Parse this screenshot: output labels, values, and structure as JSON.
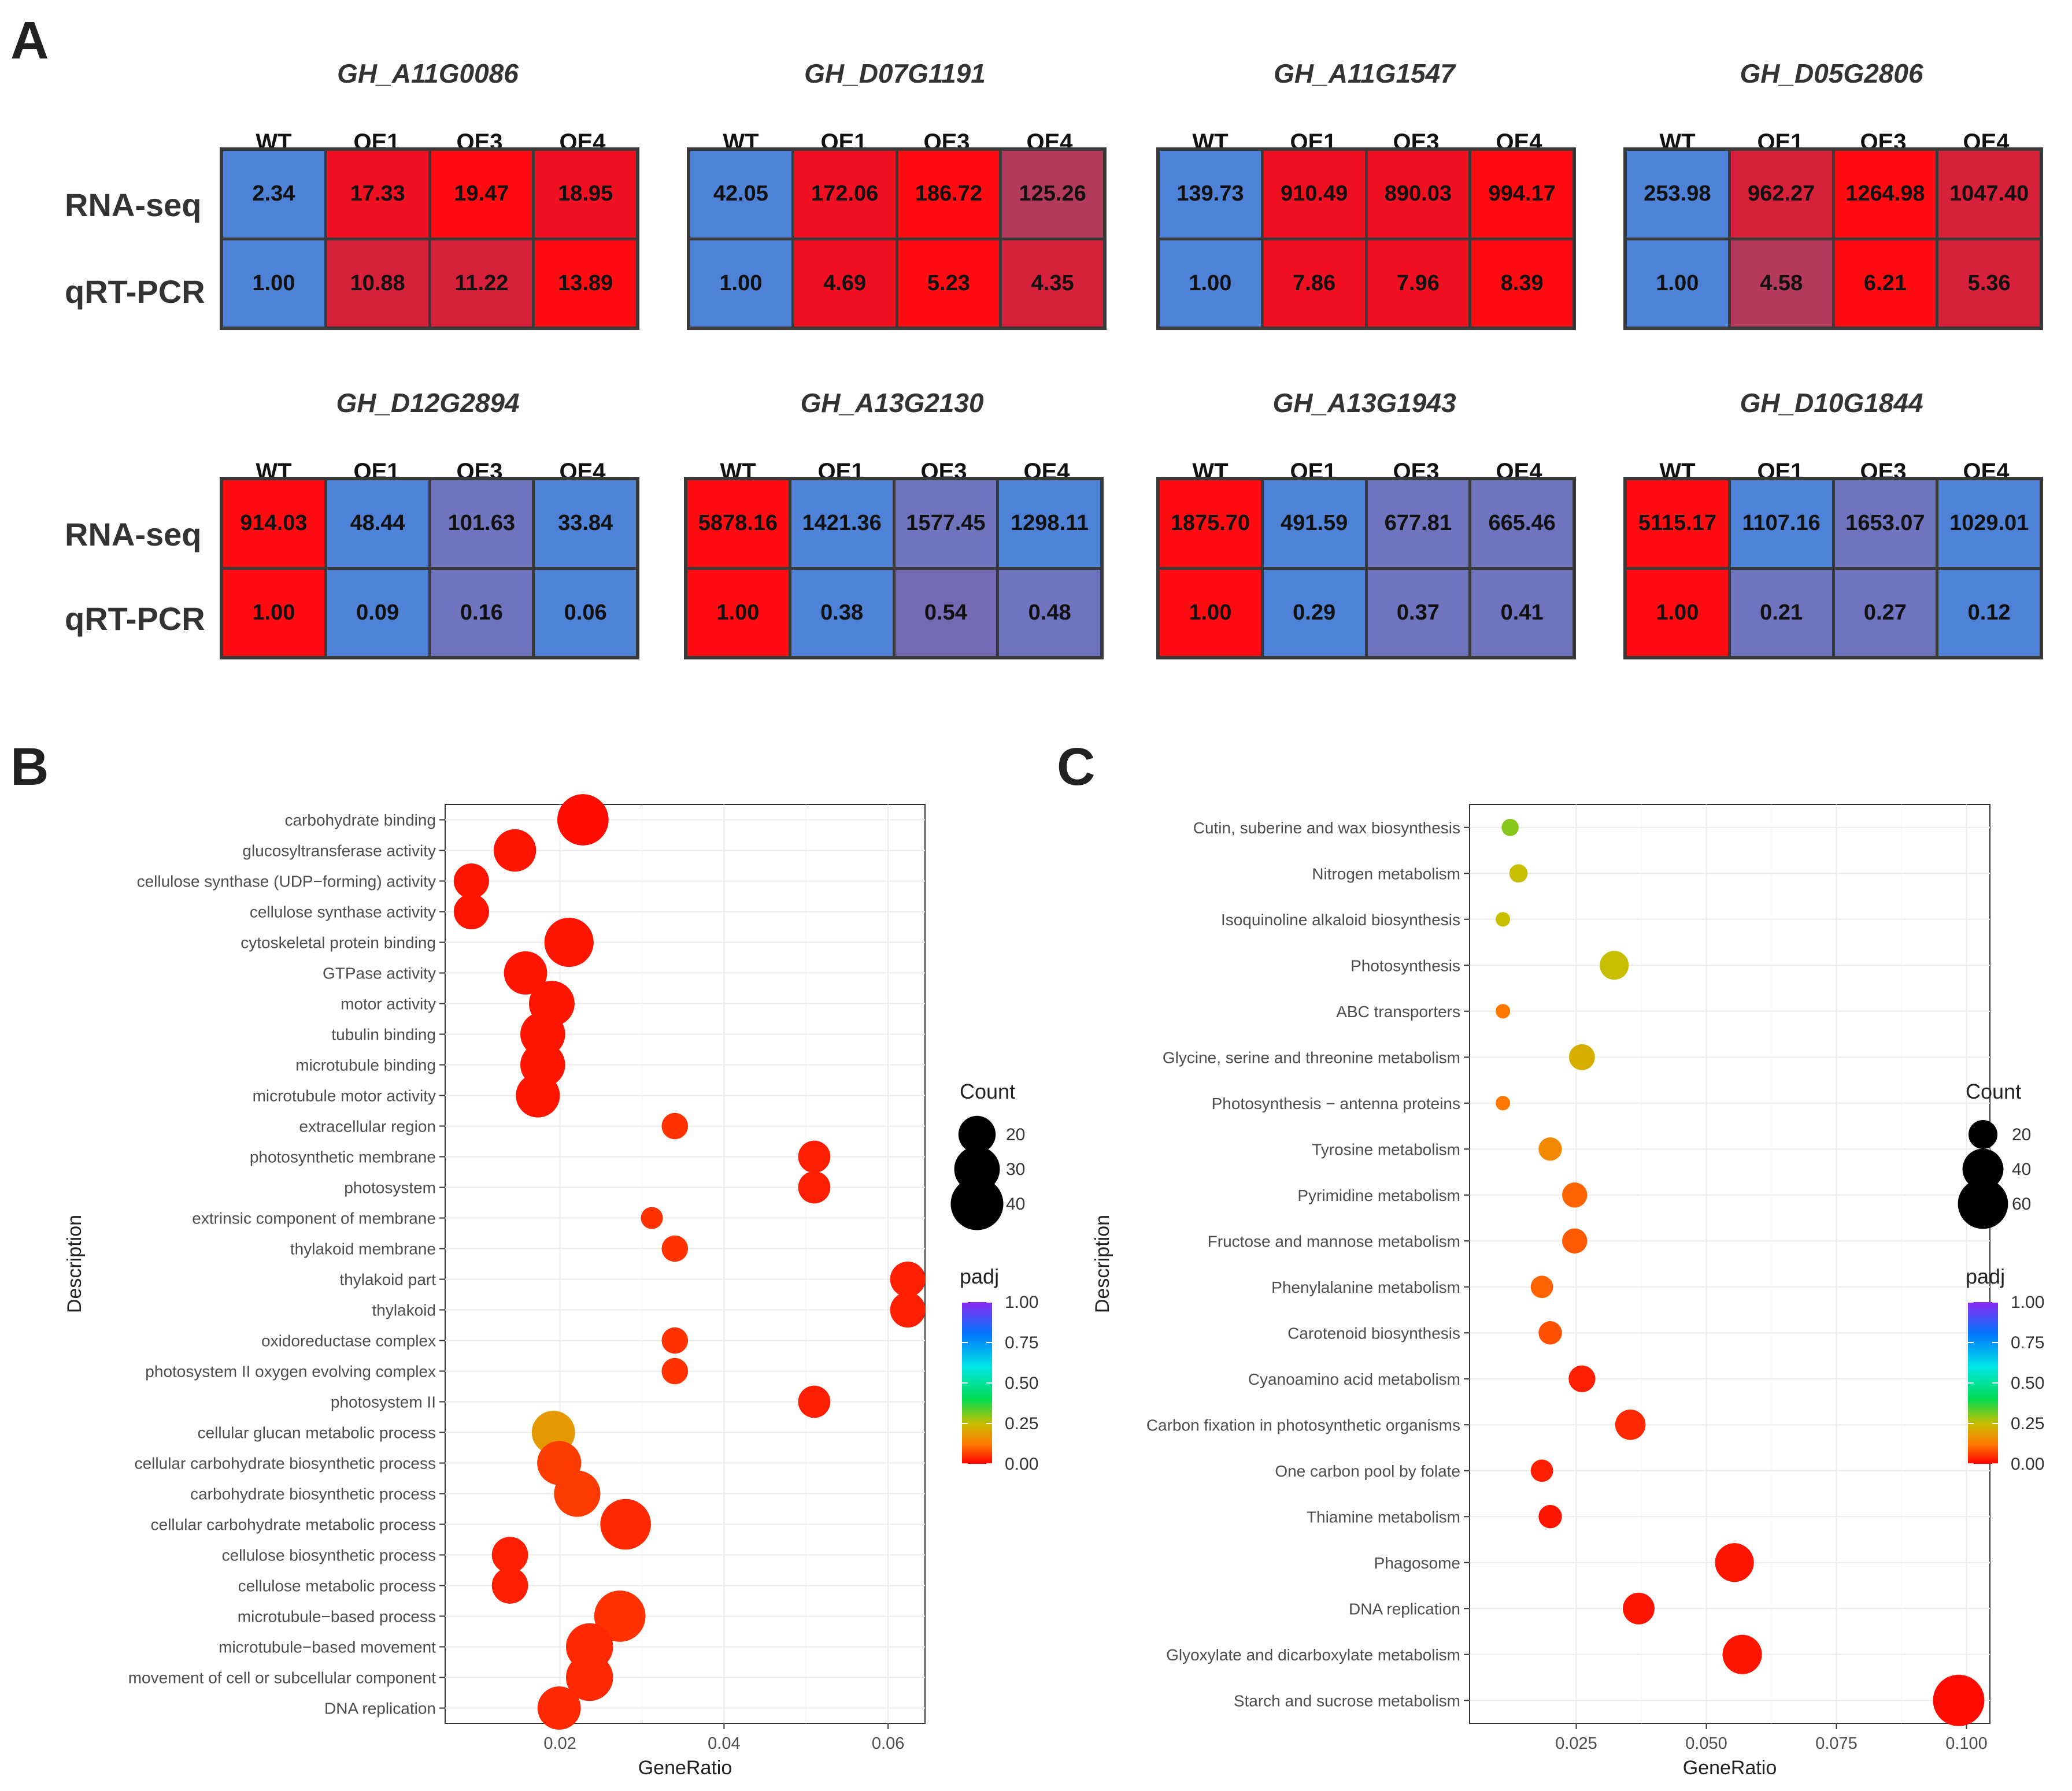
{
  "panels": {
    "a": "A",
    "b": "B",
    "c": "C"
  },
  "heatmap": {
    "row_labels": [
      "RNA-seq",
      "qRT-PCR"
    ],
    "columns": [
      "WT",
      "OE1",
      "OE3",
      "OE4"
    ],
    "colors": {
      "blue": "#4d82d6",
      "purple": "#7469b3",
      "purple2": "#6f74bf",
      "mauve": "#b33a5a",
      "crimson": "#d7203a",
      "red": "#ef1122",
      "red2": "#ff0c12"
    },
    "genes": [
      {
        "name": "GH_A11G0086",
        "rna": [
          "2.34",
          "17.33",
          "19.47",
          "18.95"
        ],
        "qpcr": [
          "1.00",
          "10.88",
          "11.22",
          "13.89"
        ],
        "rna_c": [
          "blue",
          "red",
          "red2",
          "red"
        ],
        "qpcr_c": [
          "blue",
          "crimson",
          "crimson",
          "red2"
        ]
      },
      {
        "name": "GH_D07G1191",
        "rna": [
          "42.05",
          "172.06",
          "186.72",
          "125.26"
        ],
        "qpcr": [
          "1.00",
          "4.69",
          "5.23",
          "4.35"
        ],
        "rna_c": [
          "blue",
          "red",
          "red2",
          "mauve"
        ],
        "qpcr_c": [
          "blue",
          "red",
          "red2",
          "crimson"
        ]
      },
      {
        "name": "GH_A11G1547",
        "rna": [
          "139.73",
          "910.49",
          "890.03",
          "994.17"
        ],
        "qpcr": [
          "1.00",
          "7.86",
          "7.96",
          "8.39"
        ],
        "rna_c": [
          "blue",
          "red",
          "red",
          "red2"
        ],
        "qpcr_c": [
          "blue",
          "red",
          "red",
          "red2"
        ]
      },
      {
        "name": "GH_D05G2806",
        "rna": [
          "253.98",
          "962.27",
          "1264.98",
          "1047.40"
        ],
        "qpcr": [
          "1.00",
          "4.58",
          "6.21",
          "5.36"
        ],
        "rna_c": [
          "blue",
          "crimson",
          "red2",
          "crimson"
        ],
        "qpcr_c": [
          "blue",
          "mauve",
          "red2",
          "crimson"
        ]
      },
      {
        "name": "GH_D12G2894",
        "rna": [
          "914.03",
          "48.44",
          "101.63",
          "33.84"
        ],
        "qpcr": [
          "1.00",
          "0.09",
          "0.16",
          "0.06"
        ],
        "rna_c": [
          "red2",
          "blue",
          "purple2",
          "blue"
        ],
        "qpcr_c": [
          "red2",
          "blue",
          "purple2",
          "blue"
        ]
      },
      {
        "name": "GH_A13G2130",
        "rna": [
          "5878.16",
          "1421.36",
          "1577.45",
          "1298.11"
        ],
        "qpcr": [
          "1.00",
          "0.38",
          "0.54",
          "0.48"
        ],
        "rna_c": [
          "red2",
          "blue",
          "purple2",
          "blue"
        ],
        "qpcr_c": [
          "red2",
          "blue",
          "purple",
          "purple2"
        ]
      },
      {
        "name": "GH_A13G1943",
        "rna": [
          "1875.70",
          "491.59",
          "677.81",
          "665.46"
        ],
        "qpcr": [
          "1.00",
          "0.29",
          "0.37",
          "0.41"
        ],
        "rna_c": [
          "red2",
          "blue",
          "purple2",
          "purple2"
        ],
        "qpcr_c": [
          "red2",
          "blue",
          "purple2",
          "purple2"
        ]
      },
      {
        "name": "GH_D10G1844",
        "rna": [
          "5115.17",
          "1107.16",
          "1653.07",
          "1029.01"
        ],
        "qpcr": [
          "1.00",
          "0.21",
          "0.27",
          "0.12"
        ],
        "rna_c": [
          "red2",
          "blue",
          "purple2",
          "blue"
        ],
        "qpcr_c": [
          "red2",
          "purple2",
          "purple2",
          "blue"
        ]
      }
    ]
  },
  "chart_data": [
    {
      "type": "scatter",
      "title": "",
      "xlabel": "GeneRatio",
      "ylabel": "Description",
      "xlim": [
        0.006,
        0.0645
      ],
      "xticks": [
        0.02,
        0.04,
        0.06
      ],
      "xtick_labels": [
        "0.02",
        "0.04",
        "0.06"
      ],
      "size_legend": {
        "title": "Count",
        "values": [
          20,
          30,
          40
        ]
      },
      "color_legend": {
        "title": "padj",
        "values": [
          1.0,
          0.75,
          0.5,
          0.25,
          0.0
        ],
        "labels": [
          "1.00",
          "0.75",
          "0.50",
          "0.25",
          "0.00"
        ]
      },
      "categories": [
        "carbohydrate binding",
        "glucosyltransferase activity",
        "cellulose synthase (UDP−forming) activity",
        "cellulose synthase activity",
        "cytoskeletal protein binding",
        "GTPase activity",
        "motor activity",
        "tubulin binding",
        "microtubule binding",
        "microtubule motor activity",
        "extracellular region",
        "photosynthetic membrane",
        "photosystem",
        "extrinsic component of membrane",
        "thylakoid membrane",
        "thylakoid part",
        "thylakoid",
        "oxidoreductase complex",
        "photosystem II oxygen evolving complex",
        "photosystem II",
        "cellular glucan metabolic process",
        "cellular carbohydrate biosynthetic process",
        "carbohydrate biosynthetic process",
        "cellular carbohydrate metabolic process",
        "cellulose biosynthetic process",
        "cellulose metabolic process",
        "microtubule−based process",
        "microtubule−based movement",
        "movement of cell or subcellular component",
        "DNA replication"
      ],
      "x": [
        0.0228,
        0.0145,
        0.0092,
        0.0092,
        0.0211,
        0.0158,
        0.019,
        0.0179,
        0.0179,
        0.0173,
        0.034,
        0.051,
        0.051,
        0.0312,
        0.034,
        0.0624,
        0.0624,
        0.034,
        0.034,
        0.051,
        0.0192,
        0.0199,
        0.0221,
        0.028,
        0.0139,
        0.0139,
        0.0273,
        0.0236,
        0.0236,
        0.0199
      ],
      "count": [
        38,
        26,
        18,
        18,
        35,
        27,
        30,
        29,
        29,
        28,
        10,
        15,
        15,
        7,
        10,
        18,
        18,
        10,
        10,
        15,
        27,
        28,
        31,
        37,
        19,
        19,
        38,
        32,
        32,
        27
      ],
      "padj": [
        0.01,
        0.02,
        0.02,
        0.02,
        0.02,
        0.02,
        0.02,
        0.02,
        0.02,
        0.02,
        0.05,
        0.03,
        0.03,
        0.05,
        0.05,
        0.03,
        0.03,
        0.05,
        0.05,
        0.03,
        0.18,
        0.06,
        0.06,
        0.04,
        0.03,
        0.03,
        0.05,
        0.04,
        0.04,
        0.04
      ]
    },
    {
      "type": "scatter",
      "title": "",
      "xlabel": "GeneRatio",
      "ylabel": "Description",
      "xlim": [
        0.0045,
        0.1045
      ],
      "xticks": [
        0.025,
        0.05,
        0.075,
        0.1
      ],
      "xtick_labels": [
        "0.025",
        "0.050",
        "0.075",
        "0.100"
      ],
      "size_legend": {
        "title": "Count",
        "values": [
          20,
          40,
          60
        ]
      },
      "color_legend": {
        "title": "padj",
        "values": [
          1.0,
          0.75,
          0.5,
          0.25,
          0.0
        ],
        "labels": [
          "1.00",
          "0.75",
          "0.50",
          "0.25",
          "0.00"
        ]
      },
      "categories": [
        "Cutin, suberine and wax biosynthesis",
        "Nitrogen metabolism",
        "Isoquinoline alkaloid biosynthesis",
        "Photosynthesis",
        "ABC transporters",
        "Glycine, serine and threonine metabolism",
        "Photosynthesis − antenna proteins",
        "Tyrosine metabolism",
        "Pyrimidine metabolism",
        "Fructose and mannose metabolism",
        "Phenylalanine metabolism",
        "Carotenoid biosynthesis",
        "Cyanoamino acid metabolism",
        "Carbon fixation in photosynthetic organisms",
        "One carbon pool by folate",
        "Thiamine metabolism",
        "Phagosome",
        "DNA replication",
        "Glyoxylate and dicarboxylate metabolism",
        "Starch and sucrose metabolism"
      ],
      "x": [
        0.0123,
        0.0139,
        0.0109,
        0.0323,
        0.0109,
        0.0261,
        0.0109,
        0.02,
        0.0247,
        0.0247,
        0.0184,
        0.02,
        0.0261,
        0.0354,
        0.0184,
        0.02,
        0.0554,
        0.037,
        0.0569,
        0.0985
      ],
      "count": [
        7,
        8,
        5,
        20,
        5,
        16,
        5,
        13,
        15,
        15,
        12,
        13,
        17,
        22,
        12,
        13,
        36,
        24,
        37,
        63
      ],
      "padj": [
        0.3,
        0.25,
        0.25,
        0.25,
        0.12,
        0.22,
        0.12,
        0.15,
        0.1,
        0.09,
        0.1,
        0.08,
        0.03,
        0.04,
        0.03,
        0.02,
        0.02,
        0.02,
        0.02,
        0.01
      ]
    }
  ]
}
